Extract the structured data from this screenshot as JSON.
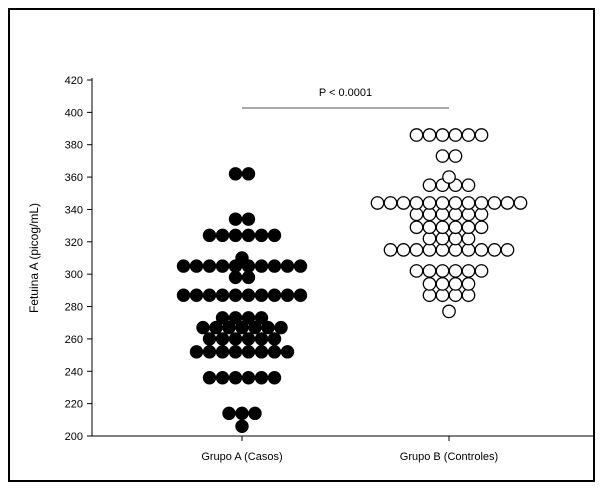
{
  "chart_data": {
    "type": "scatter",
    "subtype": "dot-plot",
    "title": "",
    "xlabel": "",
    "ylabel": "Fetuina A (picog/mL)",
    "ylim": [
      200,
      420
    ],
    "yticks": [
      200,
      220,
      240,
      260,
      280,
      300,
      320,
      340,
      360,
      380,
      400,
      420
    ],
    "categories": [
      "Grupo A (Casos)",
      "Grupo B (Controles)"
    ],
    "annotation": "P < 0.0001",
    "grid": false,
    "series": [
      {
        "category": "Grupo A (Casos)",
        "marker": "filled-circle",
        "color": "#000000",
        "values": [
          362,
          362,
          334,
          334,
          324,
          324,
          324,
          324,
          324,
          324,
          310,
          305,
          305,
          305,
          305,
          305,
          305,
          305,
          305,
          305,
          305,
          298,
          298,
          287,
          287,
          287,
          287,
          287,
          287,
          287,
          287,
          287,
          287,
          273,
          273,
          273,
          273,
          267,
          267,
          267,
          267,
          267,
          267,
          267,
          260,
          260,
          260,
          260,
          260,
          260,
          252,
          252,
          252,
          252,
          252,
          252,
          252,
          252,
          236,
          236,
          236,
          236,
          236,
          236,
          214,
          214,
          214,
          206
        ]
      },
      {
        "category": "Grupo B (Controles)",
        "marker": "open-circle",
        "color": "#000000",
        "values": [
          386,
          386,
          386,
          386,
          386,
          386,
          373,
          373,
          360,
          355,
          355,
          355,
          355,
          344,
          344,
          344,
          344,
          344,
          344,
          344,
          344,
          344,
          344,
          344,
          344,
          337,
          337,
          337,
          337,
          337,
          337,
          329,
          329,
          329,
          329,
          329,
          329,
          322,
          322,
          322,
          322,
          315,
          315,
          315,
          315,
          315,
          315,
          315,
          315,
          315,
          315,
          302,
          302,
          302,
          302,
          302,
          302,
          294,
          294,
          294,
          294,
          287,
          287,
          287,
          287,
          277
        ]
      }
    ]
  }
}
